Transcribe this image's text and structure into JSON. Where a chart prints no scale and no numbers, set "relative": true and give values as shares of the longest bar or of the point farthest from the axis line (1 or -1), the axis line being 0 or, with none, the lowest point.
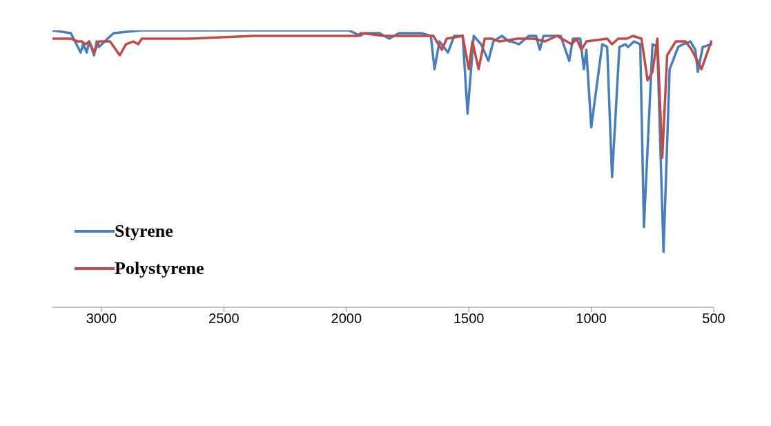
{
  "chart_data": {
    "type": "line",
    "relative": true,
    "xlim": [
      3200,
      500
    ],
    "xticks": [
      3000,
      2500,
      2000,
      1500,
      1000,
      500
    ],
    "legend": "left",
    "grid": false,
    "marker": "none",
    "line_style": "solid",
    "series": [
      {
        "name": "Styrene",
        "color": "#4a7ebb",
        "x": [
          3200,
          3125,
          3085,
          3075,
          3060,
          3050,
          3030,
          3020,
          3010,
          2975,
          2950,
          2840,
          2340,
          1990,
          1965,
          1945,
          1925,
          1895,
          1865,
          1825,
          1785,
          1755,
          1725,
          1695,
          1655,
          1640,
          1620,
          1585,
          1560,
          1525,
          1505,
          1480,
          1450,
          1420,
          1400,
          1365,
          1335,
          1325,
          1295,
          1255,
          1225,
          1210,
          1195,
          1125,
          1090,
          1075,
          1045,
          1030,
          1020,
          1000,
          955,
          935,
          915,
          885,
          860,
          850,
          825,
          800,
          785,
          750,
          730,
          705,
          680,
          645,
          625,
          595,
          575,
          565,
          545,
          510
        ],
        "values": [
          1.0,
          0.99,
          0.92,
          0.95,
          0.92,
          0.96,
          0.91,
          0.96,
          0.94,
          0.97,
          0.99,
          1.0,
          1.0,
          1.0,
          0.99,
          0.98,
          0.99,
          0.99,
          0.99,
          0.97,
          0.99,
          0.99,
          0.99,
          0.99,
          0.98,
          0.86,
          0.96,
          0.92,
          0.98,
          0.98,
          0.7,
          0.98,
          0.95,
          0.89,
          0.96,
          0.98,
          0.96,
          0.96,
          0.95,
          0.98,
          0.98,
          0.93,
          0.98,
          0.98,
          0.89,
          0.97,
          0.97,
          0.86,
          0.93,
          0.65,
          0.95,
          0.94,
          0.47,
          0.94,
          0.95,
          0.94,
          0.96,
          0.95,
          0.29,
          0.95,
          0.94,
          0.2,
          0.86,
          0.94,
          0.95,
          0.96,
          0.93,
          0.85,
          0.94,
          0.95
        ]
      },
      {
        "name": "Polystyrene",
        "color": "#be4b48",
        "x": [
          3200,
          3125,
          3095,
          3080,
          3065,
          3050,
          3030,
          3010,
          2985,
          2965,
          2925,
          2900,
          2870,
          2850,
          2835,
          2640,
          2380,
          2240,
          2155,
          1955,
          1940,
          1845,
          1815,
          1725,
          1645,
          1610,
          1590,
          1525,
          1500,
          1485,
          1460,
          1435,
          1405,
          1375,
          1300,
          1235,
          1190,
          1140,
          1080,
          1060,
          1040,
          1020,
          935,
          915,
          890,
          855,
          830,
          795,
          770,
          750,
          730,
          710,
          690,
          655,
          615,
          590,
          550,
          510
        ],
        "values": [
          0.97,
          0.97,
          0.96,
          0.96,
          0.95,
          0.96,
          0.92,
          0.96,
          0.96,
          0.96,
          0.91,
          0.95,
          0.96,
          0.95,
          0.97,
          0.97,
          0.98,
          0.98,
          0.98,
          0.98,
          0.99,
          0.98,
          0.98,
          0.98,
          0.98,
          0.93,
          0.97,
          0.98,
          0.86,
          0.96,
          0.86,
          0.97,
          0.97,
          0.96,
          0.97,
          0.97,
          0.96,
          0.98,
          0.95,
          0.97,
          0.93,
          0.96,
          0.97,
          0.95,
          0.97,
          0.97,
          0.98,
          0.97,
          0.82,
          0.85,
          0.97,
          0.54,
          0.91,
          0.96,
          0.96,
          0.93,
          0.86,
          0.96
        ]
      }
    ]
  }
}
